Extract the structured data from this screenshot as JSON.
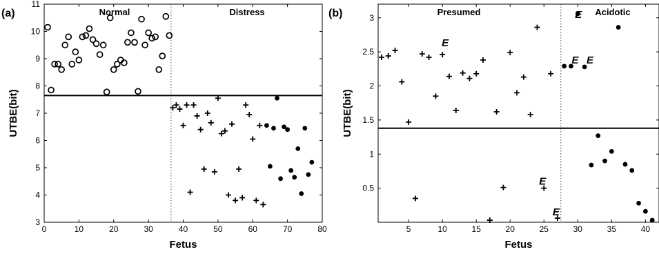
{
  "chart_data": [
    {
      "type": "scatter",
      "panel_label": "(a)",
      "xlabel": "Fetus",
      "ylabel": "UTBE(bit)",
      "xlim": [
        0,
        80
      ],
      "ylim": [
        3,
        11
      ],
      "xticks": [
        0,
        10,
        20,
        30,
        40,
        50,
        60,
        70,
        80
      ],
      "yticks": [
        3,
        4,
        5,
        6,
        7,
        8,
        9,
        10,
        11
      ],
      "threshold_y": 7.65,
      "divider_x": 36.5,
      "region_labels": [
        "Normal",
        "Distress"
      ],
      "series": [
        {
          "marker": "open-circle",
          "points": [
            [
              1,
              10.15
            ],
            [
              2,
              7.85
            ],
            [
              3,
              8.8
            ],
            [
              4,
              8.8
            ],
            [
              5,
              8.6
            ],
            [
              6,
              9.5
            ],
            [
              7,
              9.8
            ],
            [
              8,
              8.8
            ],
            [
              9,
              9.25
            ],
            [
              10,
              8.95
            ],
            [
              11,
              9.8
            ],
            [
              12,
              9.85
            ],
            [
              13,
              10.1
            ],
            [
              14,
              9.7
            ],
            [
              15,
              9.55
            ],
            [
              16,
              9.15
            ],
            [
              17,
              9.5
            ],
            [
              18,
              7.78
            ],
            [
              19,
              10.5
            ],
            [
              20,
              8.6
            ],
            [
              21,
              8.8
            ],
            [
              22,
              8.95
            ],
            [
              23,
              8.85
            ],
            [
              24,
              9.6
            ],
            [
              25,
              9.95
            ],
            [
              26,
              9.6
            ],
            [
              27,
              7.8
            ],
            [
              28,
              10.45
            ],
            [
              29,
              9.5
            ],
            [
              30,
              9.95
            ],
            [
              31,
              9.75
            ],
            [
              32,
              9.8
            ],
            [
              33,
              8.6
            ],
            [
              34,
              9.1
            ],
            [
              35,
              10.55
            ],
            [
              36,
              9.85
            ]
          ]
        },
        {
          "marker": "plus",
          "points": [
            [
              37,
              7.2
            ],
            [
              38,
              7.3
            ],
            [
              39,
              7.15
            ],
            [
              40,
              6.55
            ],
            [
              41,
              7.3
            ],
            [
              42,
              4.1
            ],
            [
              43,
              7.3
            ],
            [
              44,
              6.9
            ],
            [
              45,
              6.4
            ],
            [
              46,
              4.95
            ],
            [
              47,
              7.0
            ],
            [
              48,
              6.65
            ],
            [
              49,
              4.85
            ],
            [
              50,
              7.55
            ],
            [
              51,
              6.25
            ],
            [
              52,
              6.35
            ],
            [
              53,
              4.0
            ],
            [
              54,
              6.6
            ],
            [
              55,
              3.8
            ],
            [
              56,
              4.95
            ],
            [
              57,
              3.9
            ],
            [
              58,
              7.3
            ],
            [
              59,
              6.95
            ],
            [
              60,
              6.05
            ],
            [
              61,
              3.8
            ],
            [
              62,
              6.55
            ],
            [
              63,
              3.65
            ]
          ]
        },
        {
          "marker": "filled-circle",
          "points": [
            [
              64,
              6.55
            ],
            [
              65,
              5.05
            ],
            [
              66,
              6.45
            ],
            [
              67,
              7.55
            ],
            [
              68,
              4.6
            ],
            [
              69,
              6.5
            ],
            [
              70,
              6.4
            ],
            [
              71,
              4.9
            ],
            [
              72,
              4.65
            ],
            [
              73,
              5.7
            ],
            [
              74,
              4.05
            ],
            [
              75,
              6.45
            ],
            [
              76,
              4.75
            ],
            [
              77,
              5.2
            ]
          ]
        }
      ]
    },
    {
      "type": "scatter",
      "panel_label": "(b)",
      "xlabel": "Fetus",
      "ylabel": "UTBE(bit)",
      "xlim": [
        0.5,
        42
      ],
      "ylim": [
        0,
        3.2
      ],
      "xticks": [
        5,
        10,
        15,
        20,
        25,
        30,
        35,
        40
      ],
      "yticks": [
        0.5,
        1,
        1.5,
        2,
        2.5,
        3
      ],
      "threshold_y": 1.38,
      "divider_x": 27.5,
      "region_labels": [
        "Presumed",
        "Acidotic"
      ],
      "series": [
        {
          "marker": "plus",
          "points": [
            [
              1,
              2.42
            ],
            [
              2,
              2.44
            ],
            [
              3,
              2.52
            ],
            [
              4,
              2.06
            ],
            [
              5,
              1.47
            ],
            [
              6,
              0.35
            ],
            [
              7,
              2.47
            ],
            [
              8,
              2.42
            ],
            [
              9,
              1.85
            ],
            [
              10,
              2.46
            ],
            [
              11,
              2.14
            ],
            [
              12,
              1.64
            ],
            [
              13,
              2.19
            ],
            [
              14,
              2.11
            ],
            [
              15,
              2.18
            ],
            [
              16,
              2.38
            ],
            [
              17,
              0.03
            ],
            [
              18,
              1.62
            ],
            [
              19,
              0.51
            ],
            [
              20,
              2.49
            ],
            [
              21,
              1.9
            ],
            [
              22,
              2.13
            ],
            [
              23,
              1.58
            ],
            [
              24,
              2.86
            ],
            [
              25,
              0.5
            ],
            [
              26,
              2.18
            ],
            [
              27,
              0.06
            ]
          ]
        },
        {
          "marker": "filled-circle",
          "points": [
            [
              28,
              2.29
            ],
            [
              29,
              2.29
            ],
            [
              30,
              3.06
            ],
            [
              31,
              2.28
            ],
            [
              32,
              0.84
            ],
            [
              33,
              1.27
            ],
            [
              34,
              0.9
            ],
            [
              35,
              1.04
            ],
            [
              36,
              2.86
            ],
            [
              37,
              0.85
            ],
            [
              38,
              0.76
            ],
            [
              39,
              0.28
            ],
            [
              40,
              0.16
            ],
            [
              41,
              0.03
            ]
          ]
        }
      ],
      "annotations": [
        {
          "text": "E",
          "x": 10.4,
          "y": 2.58
        },
        {
          "text": "E",
          "x": 30.1,
          "y": 3.0
        },
        {
          "text": "E",
          "x": 29.6,
          "y": 2.33
        },
        {
          "text": "E",
          "x": 31.8,
          "y": 2.33
        },
        {
          "text": "E",
          "x": 24.8,
          "y": 0.55
        },
        {
          "text": "E",
          "x": 26.8,
          "y": 0.1
        }
      ]
    }
  ]
}
